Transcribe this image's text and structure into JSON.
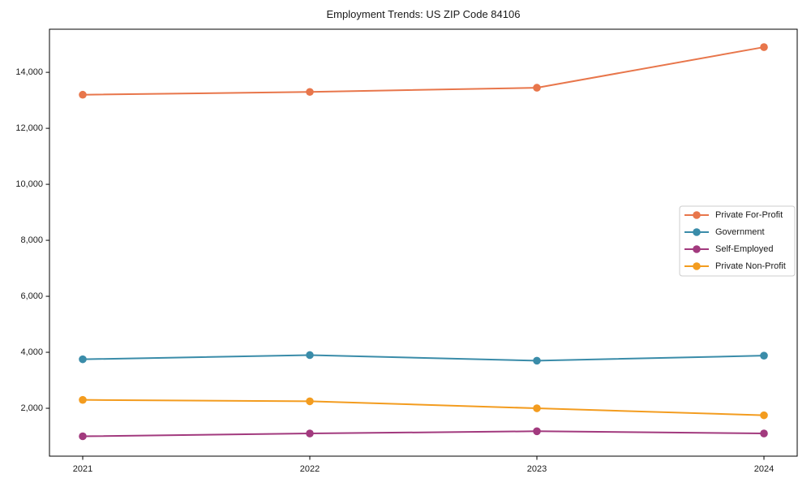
{
  "figure": {
    "title": "Employment Trends: US ZIP Code 84106"
  },
  "chart_data": {
    "type": "line",
    "title": "Employment Trends: US ZIP Code 84106",
    "categories": [
      "2021",
      "2022",
      "2023",
      "2024"
    ],
    "series": [
      {
        "name": "Private For-Profit",
        "color": "#E8764B",
        "values": [
          13200,
          13300,
          13450,
          14900
        ]
      },
      {
        "name": "Government",
        "color": "#3A8CA9",
        "values": [
          3750,
          3900,
          3700,
          3880
        ]
      },
      {
        "name": "Self-Employed",
        "color": "#A23A7E",
        "values": [
          1000,
          1100,
          1180,
          1100
        ]
      },
      {
        "name": "Private Non-Profit",
        "color": "#F39C1F",
        "values": [
          2300,
          2250,
          2000,
          1750
        ]
      }
    ],
    "xlabel": "",
    "ylabel": "",
    "ylim": [
      290,
      15540
    ],
    "yticks": {
      "values": [
        2000,
        4000,
        6000,
        8000,
        10000,
        12000,
        14000
      ],
      "labels": [
        "2,000",
        "4,000",
        "6,000",
        "8,000",
        "10,000",
        "12,000",
        "14,000"
      ]
    },
    "xticks": [
      "2021",
      "2022",
      "2023",
      "2024"
    ],
    "grid": false,
    "marker": "circle",
    "legend": {
      "position": "center right",
      "entries": [
        "Private For-Profit",
        "Government",
        "Self-Employed",
        "Private Non-Profit"
      ]
    },
    "axis_color": "#000000",
    "background_color": "#ffffff"
  }
}
